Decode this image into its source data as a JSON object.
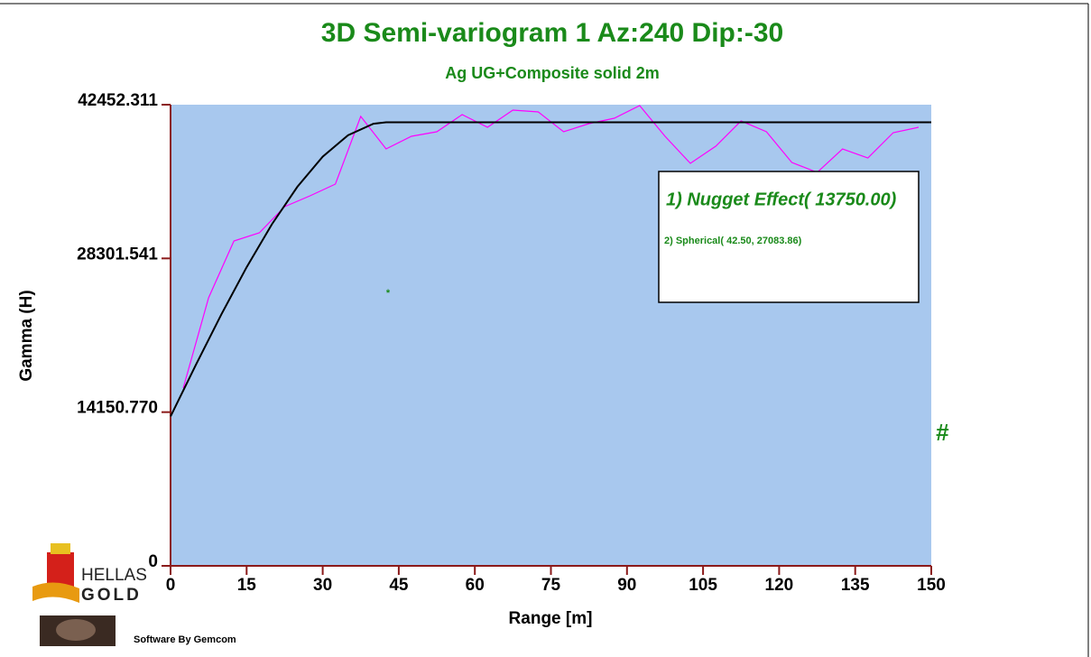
{
  "chart_data": {
    "type": "line",
    "title": "3D Semi-variogram 1 Az:240 Dip:-30",
    "subtitle": "Ag UG+Composite solid 2m",
    "xlabel": "Range [m]",
    "ylabel": "Gamma (H)",
    "xlim": [
      0,
      150
    ],
    "xticks": [
      0,
      15,
      30,
      45,
      60,
      75,
      90,
      105,
      120,
      135,
      150
    ],
    "ylim": [
      0,
      42452.311
    ],
    "yticks": [
      0,
      {
        "value": 14150.77,
        "label": "14150.770"
      },
      28301.541,
      42452.311
    ],
    "background": "#a8c8ee",
    "series": [
      {
        "color": "#ff00ff",
        "x": [
          2.5,
          7.5,
          12.5,
          17.5,
          22.5,
          27.5,
          32.5,
          37.5,
          42.5,
          47.5,
          52.5,
          57.5,
          62.5,
          67.5,
          72.5,
          77.5,
          82.5,
          87.5,
          92.5,
          97.5,
          102.5,
          107.5,
          112.5,
          117.5,
          122.5,
          127.5,
          132.5,
          137.5,
          142.5,
          147.5
        ],
        "values": [
          16366,
          24674,
          29908,
          30655,
          33064,
          34061,
          35142,
          41372,
          38381,
          39544,
          39960,
          41538,
          40375,
          41953,
          41787,
          39960,
          40707,
          41206,
          42369,
          39544,
          37052,
          38630,
          40956,
          39960,
          37135,
          36221,
          38381,
          37550,
          39877,
          40375
        ]
      },
      {
        "color": "#000000",
        "x": [
          0,
          5,
          10,
          15,
          20,
          25,
          30,
          35,
          40,
          42.5,
          50,
          75,
          100,
          125,
          150
        ],
        "values": [
          13750,
          18507.5,
          23132.6,
          27493.2,
          31456.9,
          34891.1,
          37664.0,
          39643.0,
          40695.7,
          40833.86,
          40833.86,
          40833.86,
          40833.86,
          40833.86,
          40833.86
        ]
      }
    ],
    "model": [
      "1) Nugget Effect( 13750.00)",
      "2) Spherical( 42.50, 27083.86)"
    ],
    "markers": [
      "*",
      "#"
    ]
  },
  "logo": [
    "HELLAS",
    "GOLD"
  ],
  "credit": "Software By Gemcom"
}
